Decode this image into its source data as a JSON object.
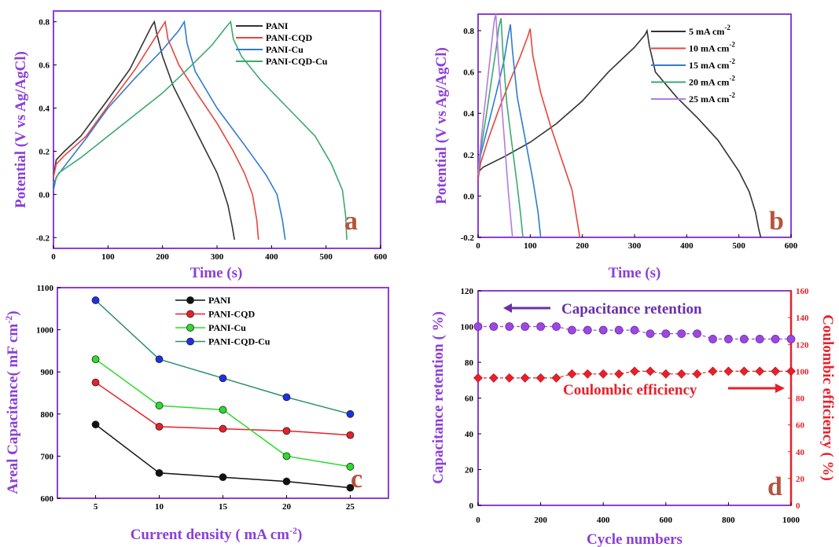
{
  "chart_data": [
    {
      "id": "a",
      "type": "line",
      "panel_label": "a",
      "xlabel": "Time (s)",
      "ylabel": "Potential  (V vs Ag/AgCl)",
      "xlim": [
        0,
        600
      ],
      "ylim": [
        -0.25,
        0.85
      ],
      "xticks": [
        0,
        100,
        200,
        300,
        400,
        500,
        600
      ],
      "yticks": [
        -0.2,
        0.0,
        0.2,
        0.4,
        0.6,
        0.8
      ],
      "ytick_labels": [
        "-0.2",
        "0.0",
        "0.2",
        "0.4",
        "0.6",
        "0.8"
      ],
      "legend_position": "top-right",
      "series": [
        {
          "name": "PANI",
          "color": "#333333",
          "x": [
            0,
            5,
            20,
            50,
            100,
            140,
            180,
            185,
            190,
            200,
            220,
            250,
            280,
            300,
            310,
            320,
            328,
            332
          ],
          "y": [
            0.08,
            0.16,
            0.2,
            0.27,
            0.44,
            0.58,
            0.78,
            0.8,
            0.74,
            0.64,
            0.5,
            0.35,
            0.2,
            0.1,
            0.03,
            -0.05,
            -0.15,
            -0.21
          ]
        },
        {
          "name": "PANI-CQD",
          "color": "#e8453c",
          "x": [
            0,
            5,
            20,
            60,
            100,
            150,
            190,
            205,
            210,
            230,
            260,
            300,
            330,
            350,
            365,
            373,
            376
          ],
          "y": [
            0.08,
            0.14,
            0.18,
            0.27,
            0.41,
            0.58,
            0.74,
            0.8,
            0.72,
            0.6,
            0.48,
            0.33,
            0.2,
            0.1,
            0,
            -0.12,
            -0.21
          ]
        },
        {
          "name": "PANI-Cu",
          "color": "#2f7bd2",
          "x": [
            0,
            5,
            20,
            60,
            100,
            150,
            200,
            230,
            240,
            245,
            260,
            300,
            350,
            390,
            410,
            420,
            425
          ],
          "y": [
            0.02,
            0.08,
            0.13,
            0.26,
            0.4,
            0.54,
            0.67,
            0.76,
            0.8,
            0.7,
            0.57,
            0.4,
            0.23,
            0.09,
            0,
            -0.12,
            -0.21
          ]
        },
        {
          "name": "PANI-CQD-Cu",
          "color": "#3aaa6e",
          "x": [
            0,
            10,
            50,
            100,
            150,
            200,
            250,
            290,
            318,
            325,
            330,
            345,
            380,
            430,
            480,
            510,
            530,
            536,
            538
          ],
          "y": [
            0.05,
            0.1,
            0.17,
            0.27,
            0.37,
            0.47,
            0.59,
            0.69,
            0.78,
            0.8,
            0.72,
            0.64,
            0.53,
            0.4,
            0.27,
            0.14,
            0.02,
            -0.1,
            -0.21
          ]
        }
      ]
    },
    {
      "id": "b",
      "type": "line",
      "panel_label": "b",
      "xlabel": "Time (s)",
      "ylabel": "Potential  (V vs Ag/AgCl)",
      "xlim": [
        0,
        600
      ],
      "ylim": [
        -0.2,
        0.88
      ],
      "xticks": [
        0,
        100,
        200,
        300,
        400,
        500,
        600
      ],
      "yticks": [
        -0.2,
        0.0,
        0.2,
        0.4,
        0.6,
        0.8
      ],
      "ytick_labels": [
        "-0.2",
        "0.0",
        "0.2",
        "0.4",
        "0.6",
        "0.8"
      ],
      "legend_position": "top-right",
      "series": [
        {
          "name": "5 mA cm-2",
          "label_base": "5 mA cm",
          "label_sup": "-2",
          "color": "#333333",
          "x": [
            0,
            2,
            10,
            50,
            100,
            150,
            200,
            250,
            300,
            320,
            324,
            328,
            340,
            380,
            420,
            460,
            500,
            520,
            532,
            538,
            542
          ],
          "y": [
            0.1,
            0.12,
            0.14,
            0.19,
            0.26,
            0.35,
            0.46,
            0.6,
            0.72,
            0.78,
            0.8,
            0.73,
            0.6,
            0.48,
            0.38,
            0.27,
            0.12,
            0.02,
            -0.08,
            -0.16,
            -0.2
          ]
        },
        {
          "name": "10 mA cm-2",
          "label_base": "10 mA cm",
          "label_sup": "-2",
          "color": "#e8453c",
          "x": [
            0,
            5,
            20,
            40,
            60,
            80,
            95,
            100,
            105,
            120,
            140,
            160,
            180,
            190,
            195
          ],
          "y": [
            0.08,
            0.16,
            0.28,
            0.42,
            0.55,
            0.67,
            0.77,
            0.81,
            0.68,
            0.5,
            0.33,
            0.18,
            0.03,
            -0.12,
            -0.2
          ]
        },
        {
          "name": "15 mA cm-2",
          "label_base": "15 mA cm",
          "label_sup": "-2",
          "color": "#2f7bd2",
          "x": [
            0,
            5,
            20,
            35,
            50,
            58,
            62,
            66,
            75,
            90,
            105,
            115,
            120
          ],
          "y": [
            0.1,
            0.2,
            0.35,
            0.5,
            0.66,
            0.78,
            0.83,
            0.7,
            0.48,
            0.28,
            0.08,
            -0.08,
            -0.2
          ]
        },
        {
          "name": "20 mA cm-2",
          "label_base": "20 mA cm",
          "label_sup": "-2",
          "color": "#3aaa6e",
          "x": [
            0,
            5,
            15,
            25,
            35,
            40,
            44,
            48,
            55,
            65,
            75,
            82,
            86
          ],
          "y": [
            0.1,
            0.22,
            0.38,
            0.55,
            0.72,
            0.82,
            0.86,
            0.68,
            0.45,
            0.25,
            0.05,
            -0.1,
            -0.2
          ]
        },
        {
          "name": "25 mA cm-2",
          "label_base": "25 mA cm",
          "label_sup": "-2",
          "color": "#b47be0",
          "x": [
            0,
            5,
            12,
            20,
            27,
            31,
            34,
            38,
            45,
            52,
            58,
            63,
            66
          ],
          "y": [
            0.1,
            0.25,
            0.42,
            0.6,
            0.76,
            0.85,
            0.88,
            0.7,
            0.45,
            0.22,
            0.02,
            -0.12,
            -0.2
          ]
        }
      ]
    },
    {
      "id": "c",
      "type": "line",
      "panel_label": "c",
      "xlabel_base": "Current density ( mA cm",
      "xlabel_sup": "-2",
      "xlabel_end": ")",
      "ylabel_base": "Areal Capacitance( mF cm",
      "ylabel_sup": "-2",
      "ylabel_end": ")",
      "xlim": [
        2,
        28
      ],
      "ylim": [
        600,
        1100
      ],
      "xticks": [
        5,
        10,
        15,
        20,
        25
      ],
      "yticks": [
        600,
        700,
        800,
        900,
        1000,
        1100
      ],
      "legend_position": "top-right",
      "x": [
        5,
        10,
        15,
        20,
        25
      ],
      "series": [
        {
          "name": "PANI",
          "color": "#111111",
          "values": [
            775,
            660,
            650,
            640,
            625
          ]
        },
        {
          "name": "PANI-CQD",
          "color": "#e8202a",
          "values": [
            875,
            770,
            765,
            760,
            750
          ]
        },
        {
          "name": "PANI-Cu",
          "color": "#2ddc2d",
          "values": [
            930,
            820,
            810,
            700,
            675
          ]
        },
        {
          "name": "PANI-CQD-Cu",
          "color": "#2a8f70",
          "marker_color": "#1f2fe8",
          "values": [
            1070,
            930,
            885,
            840,
            800
          ]
        }
      ]
    },
    {
      "id": "d",
      "type": "scatter",
      "panel_label": "d",
      "xlabel": "Cycle numbers",
      "ylabel_left": "Capacitance retention ( %)",
      "ylabel_right": "Coulombic efficiency ( %)",
      "xlim": [
        0,
        1000
      ],
      "ylim_left": [
        0,
        120
      ],
      "ylim_right": [
        0,
        160
      ],
      "xticks": [
        0,
        200,
        400,
        600,
        800,
        1000
      ],
      "yticks_left": [
        0,
        20,
        40,
        60,
        80,
        100,
        120
      ],
      "yticks_right": [
        0,
        20,
        40,
        60,
        80,
        100,
        120,
        140,
        160
      ],
      "annotations": [
        "Capacitance retention",
        "Coulombic efficiency"
      ],
      "x": [
        0,
        50,
        100,
        150,
        200,
        250,
        300,
        350,
        400,
        450,
        500,
        550,
        600,
        650,
        700,
        750,
        800,
        850,
        900,
        950,
        1000
      ],
      "series": [
        {
          "name": "Capacitance retention",
          "axis": "left",
          "color": "#9b47e0",
          "values": [
            100,
            100,
            100,
            100,
            100,
            100,
            98,
            98,
            98,
            98,
            98,
            96,
            96,
            96,
            96,
            93,
            93,
            93,
            93,
            93,
            93
          ]
        },
        {
          "name": "Coulombic efficiency",
          "axis": "right",
          "color": "#e8202a",
          "values": [
            95,
            95,
            95,
            95,
            95,
            95,
            98,
            98,
            98,
            98,
            100,
            100,
            98,
            98,
            98,
            100,
            100,
            100,
            100,
            100,
            100
          ]
        }
      ]
    }
  ]
}
